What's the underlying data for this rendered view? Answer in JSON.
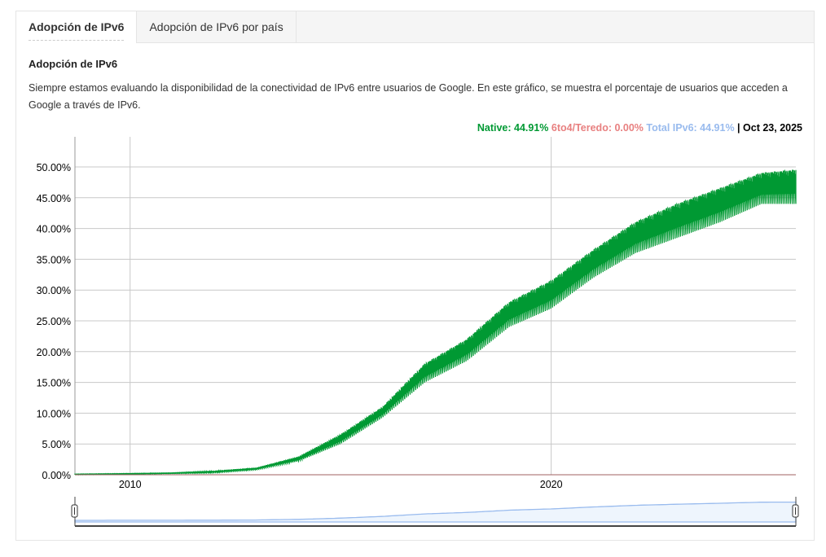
{
  "tabs": [
    {
      "label": "Adopción de IPv6",
      "active": true
    },
    {
      "label": "Adopción de IPv6 por país",
      "active": false
    }
  ],
  "heading": "Adopción de IPv6",
  "description": "Siempre estamos evaluando la disponibilidad de la conectividad de IPv6 entre usuarios de Google. En este gráfico, se muestra el porcentaje de usuarios que acceden a Google a través de IPv6.",
  "legend": {
    "native": "Native: 44.91%",
    "teredo": "6to4/Teredo: 0.00%",
    "total": "Total IPv6: 44.91%",
    "sep": "|",
    "date": "Oct 23, 2025"
  },
  "colors": {
    "native": "#009933",
    "teredo": "#e88080",
    "total": "#99bbee",
    "grid": "#c8c8c8"
  },
  "chart_data": {
    "type": "area",
    "xlim": [
      2008.69,
      2025.81
    ],
    "ylim": [
      0,
      50
    ],
    "grid": true,
    "x_ticks": [
      {
        "value": 2010,
        "label": "2010"
      },
      {
        "value": 2020,
        "label": "2020"
      }
    ],
    "y_ticks": [
      {
        "value": 0,
        "label": "0.00%"
      },
      {
        "value": 5,
        "label": "5.00%"
      },
      {
        "value": 10,
        "label": "10.00%"
      },
      {
        "value": 15,
        "label": "15.00%"
      },
      {
        "value": 20,
        "label": "20.00%"
      },
      {
        "value": 25,
        "label": "25.00%"
      },
      {
        "value": 30,
        "label": "30.00%"
      },
      {
        "value": 35,
        "label": "35.00%"
      },
      {
        "value": 40,
        "label": "40.00%"
      },
      {
        "value": 45,
        "label": "45.00%"
      },
      {
        "value": 50,
        "label": "50.00%"
      }
    ],
    "series": [
      {
        "name": "Native",
        "points": [
          [
            2008.69,
            0,
            0.1
          ],
          [
            2010,
            0.1,
            0.2
          ],
          [
            2011,
            0.2,
            0.3
          ],
          [
            2012,
            0.3,
            0.6
          ],
          [
            2013,
            0.8,
            1.1
          ],
          [
            2014,
            2.2,
            2.9
          ],
          [
            2015,
            5,
            6.5
          ],
          [
            2016,
            9.3,
            11
          ],
          [
            2017,
            15,
            18
          ],
          [
            2018,
            18.5,
            22
          ],
          [
            2019,
            24,
            28
          ],
          [
            2020,
            27,
            31.5
          ],
          [
            2021,
            32,
            36.5
          ],
          [
            2022,
            36,
            41
          ],
          [
            2023,
            38.5,
            44
          ],
          [
            2024,
            41,
            46.5
          ],
          [
            2025,
            44,
            49
          ],
          [
            2025.81,
            44,
            49.5
          ]
        ]
      },
      {
        "name": "6to4/Teredo",
        "points": [
          [
            2008.69,
            0,
            0
          ],
          [
            2025.81,
            0,
            0
          ]
        ]
      }
    ]
  }
}
